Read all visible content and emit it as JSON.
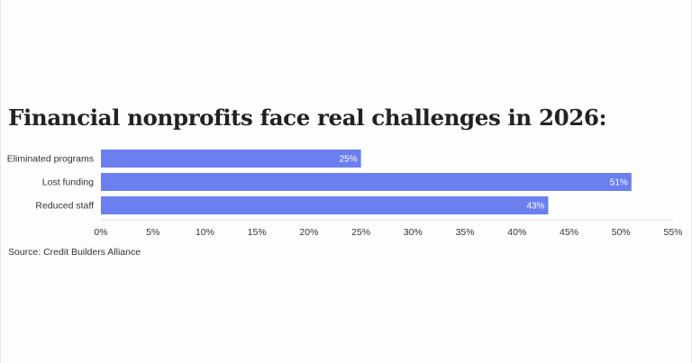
{
  "title": "Financial nonprofits face real challenges in 2026:",
  "source": "Source: Credit Builders Alliance",
  "colors": {
    "bar": "#6b7ff0",
    "bar_label": "#ffffff",
    "text": "#333333",
    "grid": "#dddddd"
  },
  "chart_data": {
    "type": "bar",
    "orientation": "horizontal",
    "title": "Financial nonprofits face real challenges in 2026:",
    "categories": [
      "Eliminated programs",
      "Lost funding",
      "Reduced staff"
    ],
    "values": [
      25,
      51,
      43
    ],
    "value_labels": [
      "25%",
      "51%",
      "43%"
    ],
    "xlim": [
      0,
      55
    ],
    "xticks": [
      0,
      5,
      10,
      15,
      20,
      25,
      30,
      35,
      40,
      45,
      50,
      55
    ],
    "xtick_labels": [
      "0%",
      "5%",
      "10%",
      "15%",
      "20%",
      "25%",
      "30%",
      "35%",
      "40%",
      "45%",
      "50%",
      "55%"
    ],
    "xlabel": "",
    "ylabel": "",
    "grid": false,
    "legend": "none"
  }
}
